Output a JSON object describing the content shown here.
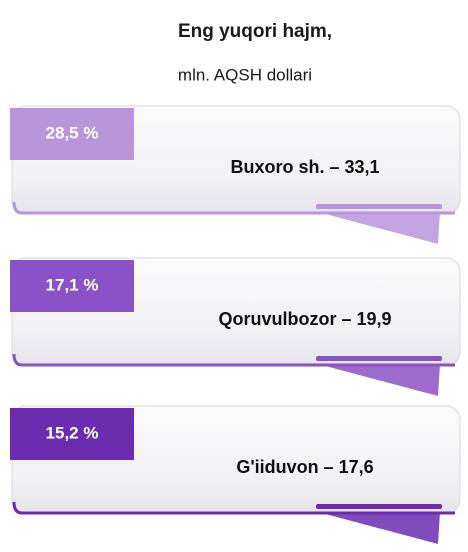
{
  "header": {
    "title": "Eng yuqori hajm,",
    "subtitle": "mln. AQSH dollari"
  },
  "items": [
    {
      "percent": "28,5 %",
      "label": "Buxoro sh. – 33,1",
      "color": "#b995dc"
    },
    {
      "percent": "17,1 %",
      "label": "Qoruvulbozor – 19,9",
      "color": "#8a52c6"
    },
    {
      "percent": "15,2 %",
      "label": "G'iiduvon – 17,6",
      "color": "#6a2db0"
    }
  ]
}
